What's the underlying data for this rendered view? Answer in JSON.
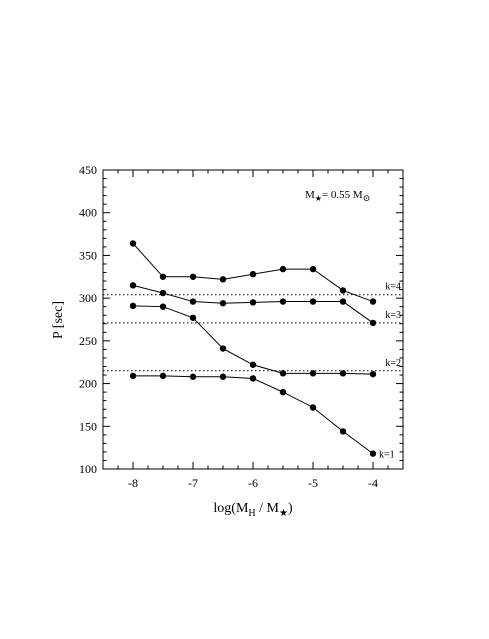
{
  "chart_data": {
    "type": "line",
    "annotation": {
      "base": "M",
      "sub_star": "★",
      "equals": "= 0.55 M",
      "sun": "⊙"
    },
    "xlabel": {
      "base": "log(M",
      "sub": "H",
      "middle": " / M",
      "star": "★",
      "close": ")"
    },
    "ylabel": "P  [sec]",
    "xlim": [
      -8.5,
      -3.5
    ],
    "ylim": [
      100,
      450
    ],
    "x_ticks": [
      -8,
      -7,
      -6,
      -5,
      -4
    ],
    "y_ticks": [
      100,
      150,
      200,
      250,
      300,
      350,
      400,
      450
    ],
    "x_tick_labels": [
      "-8",
      "-7",
      "-6",
      "-5",
      "-4"
    ],
    "y_tick_labels": [
      "100",
      "150",
      "200",
      "250",
      "300",
      "350",
      "400",
      "450"
    ],
    "x": [
      -8,
      -7.5,
      -7,
      -6.5,
      -6,
      -5.5,
      -5,
      -4.5,
      -4
    ],
    "series": [
      {
        "values": [
          364,
          325,
          325,
          322,
          328,
          334,
          334,
          309,
          296
        ]
      },
      {
        "values": [
          315,
          306,
          296,
          294,
          295,
          296,
          296,
          296,
          271
        ]
      },
      {
        "values": [
          291,
          290,
          277,
          241,
          222,
          212,
          212,
          212,
          211
        ]
      },
      {
        "values": [
          209,
          209,
          208,
          208,
          206,
          190,
          172,
          144,
          118
        ]
      }
    ],
    "reference_lines": [
      {
        "label": "k=4",
        "value": 304
      },
      {
        "label": "k=3",
        "value": 271
      },
      {
        "label": "k=2",
        "value": 215
      },
      {
        "label": "k=1",
        "value": 118
      }
    ]
  }
}
